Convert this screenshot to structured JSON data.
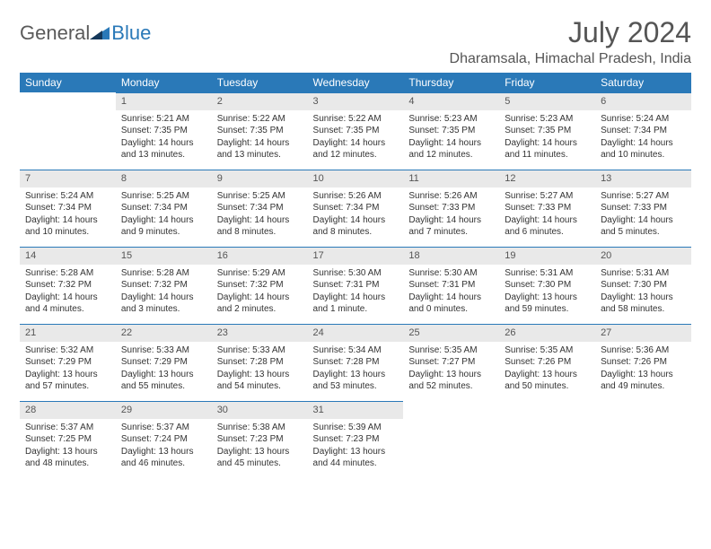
{
  "logo": {
    "text1": "General",
    "text2": "Blue"
  },
  "title": "July 2024",
  "location": "Dharamsala, Himachal Pradesh, India",
  "columns": [
    "Sunday",
    "Monday",
    "Tuesday",
    "Wednesday",
    "Thursday",
    "Friday",
    "Saturday"
  ],
  "colors": {
    "header_bg": "#2a79b8",
    "header_text": "#ffffff",
    "daynum_bg": "#e9e9e9",
    "rule": "#2a79b8"
  },
  "weeks": [
    [
      {
        "n": "",
        "sr": "",
        "ss": "",
        "d1": "",
        "d2": ""
      },
      {
        "n": "1",
        "sr": "Sunrise: 5:21 AM",
        "ss": "Sunset: 7:35 PM",
        "d1": "Daylight: 14 hours",
        "d2": "and 13 minutes."
      },
      {
        "n": "2",
        "sr": "Sunrise: 5:22 AM",
        "ss": "Sunset: 7:35 PM",
        "d1": "Daylight: 14 hours",
        "d2": "and 13 minutes."
      },
      {
        "n": "3",
        "sr": "Sunrise: 5:22 AM",
        "ss": "Sunset: 7:35 PM",
        "d1": "Daylight: 14 hours",
        "d2": "and 12 minutes."
      },
      {
        "n": "4",
        "sr": "Sunrise: 5:23 AM",
        "ss": "Sunset: 7:35 PM",
        "d1": "Daylight: 14 hours",
        "d2": "and 12 minutes."
      },
      {
        "n": "5",
        "sr": "Sunrise: 5:23 AM",
        "ss": "Sunset: 7:35 PM",
        "d1": "Daylight: 14 hours",
        "d2": "and 11 minutes."
      },
      {
        "n": "6",
        "sr": "Sunrise: 5:24 AM",
        "ss": "Sunset: 7:34 PM",
        "d1": "Daylight: 14 hours",
        "d2": "and 10 minutes."
      }
    ],
    [
      {
        "n": "7",
        "sr": "Sunrise: 5:24 AM",
        "ss": "Sunset: 7:34 PM",
        "d1": "Daylight: 14 hours",
        "d2": "and 10 minutes."
      },
      {
        "n": "8",
        "sr": "Sunrise: 5:25 AM",
        "ss": "Sunset: 7:34 PM",
        "d1": "Daylight: 14 hours",
        "d2": "and 9 minutes."
      },
      {
        "n": "9",
        "sr": "Sunrise: 5:25 AM",
        "ss": "Sunset: 7:34 PM",
        "d1": "Daylight: 14 hours",
        "d2": "and 8 minutes."
      },
      {
        "n": "10",
        "sr": "Sunrise: 5:26 AM",
        "ss": "Sunset: 7:34 PM",
        "d1": "Daylight: 14 hours",
        "d2": "and 8 minutes."
      },
      {
        "n": "11",
        "sr": "Sunrise: 5:26 AM",
        "ss": "Sunset: 7:33 PM",
        "d1": "Daylight: 14 hours",
        "d2": "and 7 minutes."
      },
      {
        "n": "12",
        "sr": "Sunrise: 5:27 AM",
        "ss": "Sunset: 7:33 PM",
        "d1": "Daylight: 14 hours",
        "d2": "and 6 minutes."
      },
      {
        "n": "13",
        "sr": "Sunrise: 5:27 AM",
        "ss": "Sunset: 7:33 PM",
        "d1": "Daylight: 14 hours",
        "d2": "and 5 minutes."
      }
    ],
    [
      {
        "n": "14",
        "sr": "Sunrise: 5:28 AM",
        "ss": "Sunset: 7:32 PM",
        "d1": "Daylight: 14 hours",
        "d2": "and 4 minutes."
      },
      {
        "n": "15",
        "sr": "Sunrise: 5:28 AM",
        "ss": "Sunset: 7:32 PM",
        "d1": "Daylight: 14 hours",
        "d2": "and 3 minutes."
      },
      {
        "n": "16",
        "sr": "Sunrise: 5:29 AM",
        "ss": "Sunset: 7:32 PM",
        "d1": "Daylight: 14 hours",
        "d2": "and 2 minutes."
      },
      {
        "n": "17",
        "sr": "Sunrise: 5:30 AM",
        "ss": "Sunset: 7:31 PM",
        "d1": "Daylight: 14 hours",
        "d2": "and 1 minute."
      },
      {
        "n": "18",
        "sr": "Sunrise: 5:30 AM",
        "ss": "Sunset: 7:31 PM",
        "d1": "Daylight: 14 hours",
        "d2": "and 0 minutes."
      },
      {
        "n": "19",
        "sr": "Sunrise: 5:31 AM",
        "ss": "Sunset: 7:30 PM",
        "d1": "Daylight: 13 hours",
        "d2": "and 59 minutes."
      },
      {
        "n": "20",
        "sr": "Sunrise: 5:31 AM",
        "ss": "Sunset: 7:30 PM",
        "d1": "Daylight: 13 hours",
        "d2": "and 58 minutes."
      }
    ],
    [
      {
        "n": "21",
        "sr": "Sunrise: 5:32 AM",
        "ss": "Sunset: 7:29 PM",
        "d1": "Daylight: 13 hours",
        "d2": "and 57 minutes."
      },
      {
        "n": "22",
        "sr": "Sunrise: 5:33 AM",
        "ss": "Sunset: 7:29 PM",
        "d1": "Daylight: 13 hours",
        "d2": "and 55 minutes."
      },
      {
        "n": "23",
        "sr": "Sunrise: 5:33 AM",
        "ss": "Sunset: 7:28 PM",
        "d1": "Daylight: 13 hours",
        "d2": "and 54 minutes."
      },
      {
        "n": "24",
        "sr": "Sunrise: 5:34 AM",
        "ss": "Sunset: 7:28 PM",
        "d1": "Daylight: 13 hours",
        "d2": "and 53 minutes."
      },
      {
        "n": "25",
        "sr": "Sunrise: 5:35 AM",
        "ss": "Sunset: 7:27 PM",
        "d1": "Daylight: 13 hours",
        "d2": "and 52 minutes."
      },
      {
        "n": "26",
        "sr": "Sunrise: 5:35 AM",
        "ss": "Sunset: 7:26 PM",
        "d1": "Daylight: 13 hours",
        "d2": "and 50 minutes."
      },
      {
        "n": "27",
        "sr": "Sunrise: 5:36 AM",
        "ss": "Sunset: 7:26 PM",
        "d1": "Daylight: 13 hours",
        "d2": "and 49 minutes."
      }
    ],
    [
      {
        "n": "28",
        "sr": "Sunrise: 5:37 AM",
        "ss": "Sunset: 7:25 PM",
        "d1": "Daylight: 13 hours",
        "d2": "and 48 minutes."
      },
      {
        "n": "29",
        "sr": "Sunrise: 5:37 AM",
        "ss": "Sunset: 7:24 PM",
        "d1": "Daylight: 13 hours",
        "d2": "and 46 minutes."
      },
      {
        "n": "30",
        "sr": "Sunrise: 5:38 AM",
        "ss": "Sunset: 7:23 PM",
        "d1": "Daylight: 13 hours",
        "d2": "and 45 minutes."
      },
      {
        "n": "31",
        "sr": "Sunrise: 5:39 AM",
        "ss": "Sunset: 7:23 PM",
        "d1": "Daylight: 13 hours",
        "d2": "and 44 minutes."
      },
      {
        "n": "",
        "sr": "",
        "ss": "",
        "d1": "",
        "d2": ""
      },
      {
        "n": "",
        "sr": "",
        "ss": "",
        "d1": "",
        "d2": ""
      },
      {
        "n": "",
        "sr": "",
        "ss": "",
        "d1": "",
        "d2": ""
      }
    ]
  ]
}
